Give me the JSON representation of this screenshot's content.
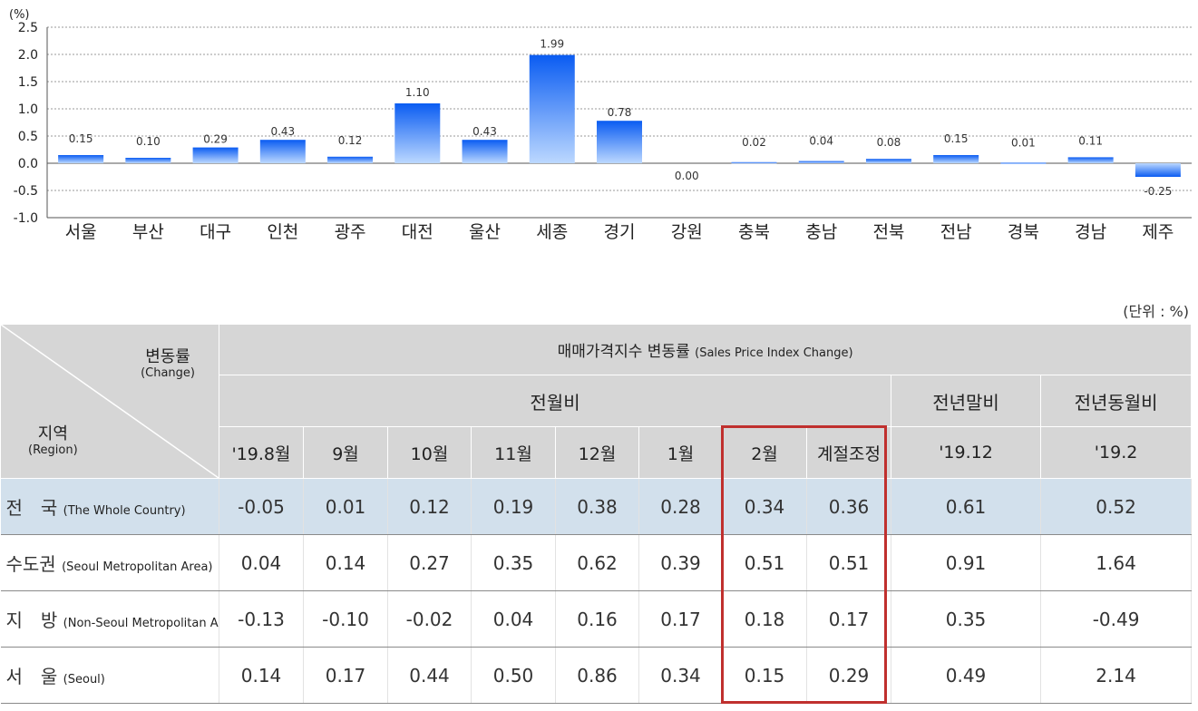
{
  "chart_data": {
    "type": "bar",
    "ylabel": "(%)",
    "ylim": [
      -1.0,
      2.5
    ],
    "yticks": [
      "2.5",
      "2.0",
      "1.5",
      "1.0",
      "0.5",
      "0.0",
      "-0.5",
      "-1.0"
    ],
    "grid": true,
    "categories": [
      "서울",
      "부산",
      "대구",
      "인천",
      "광주",
      "대전",
      "울산",
      "세종",
      "경기",
      "강원",
      "충북",
      "충남",
      "전북",
      "전남",
      "경북",
      "경남",
      "제주"
    ],
    "values": [
      0.15,
      0.1,
      0.29,
      0.43,
      0.12,
      1.1,
      0.43,
      1.99,
      0.78,
      0.0,
      0.02,
      0.04,
      0.08,
      0.15,
      0.01,
      0.11,
      -0.25
    ],
    "value_labels": [
      "0.15",
      "0.10",
      "0.29",
      "0.43",
      "0.12",
      "1.10",
      "0.43",
      "1.99",
      "0.78",
      "0.00",
      "0.02",
      "0.04",
      "0.08",
      "0.15",
      "0.01",
      "0.11",
      "-0.25"
    ],
    "positive_color": "#1a6cf5",
    "negative_color": "#1a6cf5"
  },
  "table": {
    "unit": "(단위 : %)",
    "corner_change_ko": "변동률",
    "corner_change_en": "(Change)",
    "corner_region_ko": "지역",
    "corner_region_en": "(Region)",
    "main_header_ko": "매매가격지수 변동률",
    "main_header_en": "(Sales Price Index Change)",
    "group_mom": "전월비",
    "group_ytd": "전년말비",
    "group_yoy": "전년동월비",
    "columns": [
      "'19.8월",
      "9월",
      "10월",
      "11월",
      "12월",
      "1월",
      "2월",
      "계절조정",
      "'19.12",
      "'19.2"
    ],
    "rows": [
      {
        "ko": "전　국",
        "en": "(The Whole Country)",
        "values": [
          "-0.05",
          "0.01",
          "0.12",
          "0.19",
          "0.38",
          "0.28",
          "0.34",
          "0.36",
          "0.61",
          "0.52"
        ]
      },
      {
        "ko": "수도권",
        "en": "(Seoul Metropolitan Area)",
        "values": [
          "0.04",
          "0.14",
          "0.27",
          "0.35",
          "0.62",
          "0.39",
          "0.51",
          "0.51",
          "0.91",
          "1.64"
        ]
      },
      {
        "ko": "지　방",
        "en": "(Non-Seoul Metropolitan Area)",
        "values": [
          "-0.13",
          "-0.10",
          "-0.02",
          "0.04",
          "0.16",
          "0.17",
          "0.18",
          "0.17",
          "0.35",
          "-0.49"
        ]
      },
      {
        "ko": "서　울",
        "en": "(Seoul)",
        "values": [
          "0.14",
          "0.17",
          "0.44",
          "0.50",
          "0.86",
          "0.34",
          "0.15",
          "0.29",
          "0.49",
          "2.14"
        ]
      }
    ],
    "highlight_color": "#c0302e",
    "national_row_color": "#d2e0ec"
  }
}
